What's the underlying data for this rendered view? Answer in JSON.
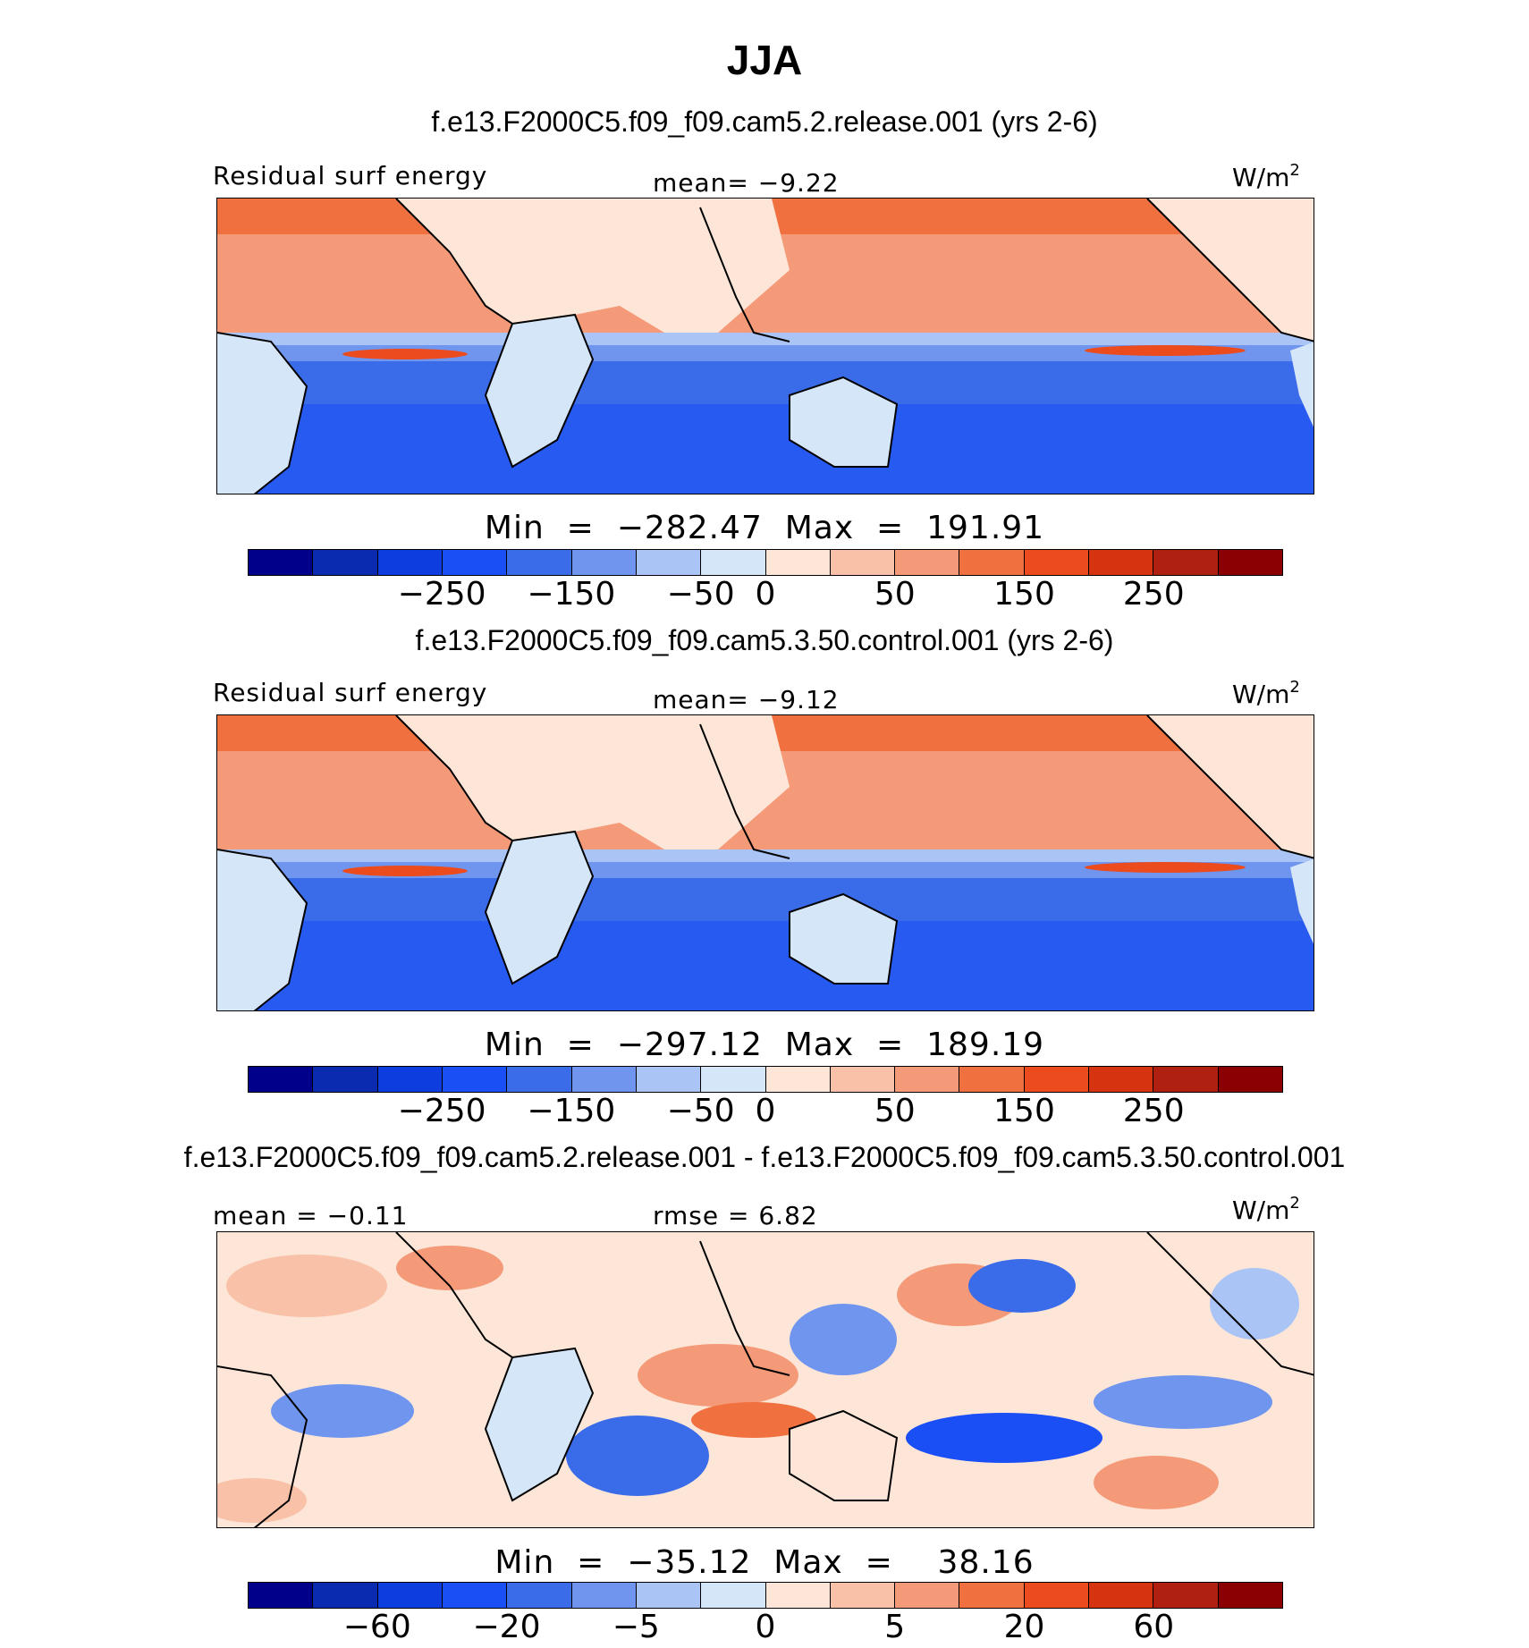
{
  "figure": {
    "title": "JJA"
  },
  "palette": [
    "#00008b",
    "#0a2bb0",
    "#0d3dde",
    "#1a4ff5",
    "#3a6be8",
    "#6f95ef",
    "#a9c4f5",
    "#d6e6f9",
    "#fde6d8",
    "#f9c2a8",
    "#f59a78",
    "#f0703f",
    "#ec4b1d",
    "#d63310",
    "#b02010",
    "#8b0000"
  ],
  "land_color": "#fde6d8",
  "panels": [
    {
      "heading": "f.e13.F2000C5.f09_f09.cam5.2.release.001 (yrs 2-6)",
      "left_label": "Residual surf energy",
      "center_label": "mean=  −9.22",
      "units": "W/m",
      "units_sup": "2",
      "minmax": "Min  =  −282.47  Max  =  191.91",
      "ticks": [
        "−250",
        "−150",
        "−50",
        "0",
        "50",
        "150",
        "250"
      ]
    },
    {
      "heading": "f.e13.F2000C5.f09_f09.cam5.3.50.control.001 (yrs 2-6)",
      "left_label": "Residual surf energy",
      "center_label": "mean=  −9.12",
      "units": "W/m",
      "units_sup": "2",
      "minmax": "Min  =  −297.12  Max  =  189.19",
      "ticks": [
        "−250",
        "−150",
        "−50",
        "0",
        "50",
        "150",
        "250"
      ]
    },
    {
      "heading": "f.e13.F2000C5.f09_f09.cam5.2.release.001 - f.e13.F2000C5.f09_f09.cam5.3.50.control.001",
      "left_label": "mean  =   −0.11",
      "center_label": "rmse  =     6.82",
      "units": "W/m",
      "units_sup": "2",
      "minmax": "Min  =  −35.12  Max  =    38.16",
      "ticks": [
        "−60",
        "−20",
        "−5",
        "0",
        "5",
        "20",
        "60"
      ]
    }
  ]
}
